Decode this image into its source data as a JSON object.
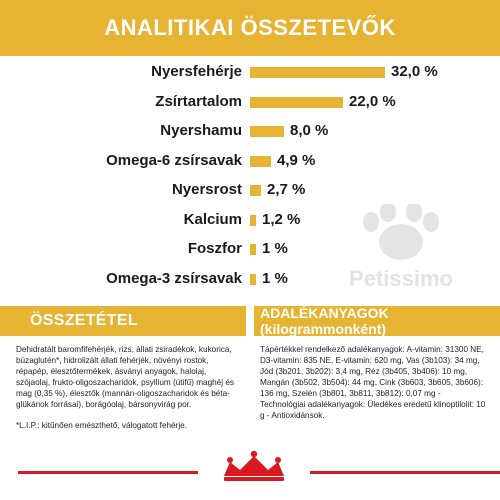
{
  "header": {
    "title": "ANALITIKAI ÖSSZETEVŐK"
  },
  "nutrients": [
    {
      "label": "Nyersfehérje",
      "value": 32.0,
      "display": "32,0 %"
    },
    {
      "label": "Zsírtartalom",
      "value": 22.0,
      "display": "22,0 %"
    },
    {
      "label": "Nyershamu",
      "value": 8.0,
      "display": "8,0 %"
    },
    {
      "label": "Omega-6 zsírsavak",
      "value": 4.9,
      "display": "4,9 %"
    },
    {
      "label": "Nyersrost",
      "value": 2.7,
      "display": "2,7 %"
    },
    {
      "label": "Kalcium",
      "value": 1.2,
      "display": "1,2 %"
    },
    {
      "label": "Foszfor",
      "value": 1.0,
      "display": "1 %"
    },
    {
      "label": "Omega-3 zsírsavak",
      "value": 1.0,
      "display": "1 %"
    }
  ],
  "composition": {
    "title": "ÖSSZETÉTEL",
    "text": "Dehidratált baromfifehérjék, rizs, állati zsiradékok, kukorica, búzaglutén*, hidrolizált állati fehérjék, növényi rostok, répapép, élesztőtermékek, ásványi anyagok, halolaj, szójaolaj, frukto-oligoszacharidok, psyllium (útifű) maghéj és mag (0,35 %), élesztők (mannán-oligoszacharidok és béta-glükánok forrásai), borágóolaj, bársonyvirág por.",
    "footnote": "*L.I.P.: kitűnően emészthető, válogatott fehérje."
  },
  "additives": {
    "title": "ADALÉKANYAGOK (kilogrammonként)",
    "text": "Tápértékkel rendelkező adalékanyagok: A-vitamin: 31300 NE, D3-vitamin: 835 NE, E-vitamin: 620 mg, Vas (3b103): 34 mg, Jód (3b201, 3b202): 3,4 mg, Réz (3b405, 3b406): 10 mg, Mangán (3b502, 3b504): 44 mg, Cink (3b603, 3b605, 3b606): 136 mg, Szelén (3b801, 3b811, 3b812): 0,07 mg - Technológiai adalékanyagok: Üledékes eredetű klinoptilolit: 10 g - Antioxidánsok."
  },
  "watermark": {
    "text": "Petissimo"
  },
  "colors": {
    "accent": "#e6b432",
    "brand_red": "#d71920",
    "text": "#1a1a1a"
  },
  "icons": {
    "logo": "royal-canin-crown-logo",
    "watermark": "paw-print-icon"
  }
}
